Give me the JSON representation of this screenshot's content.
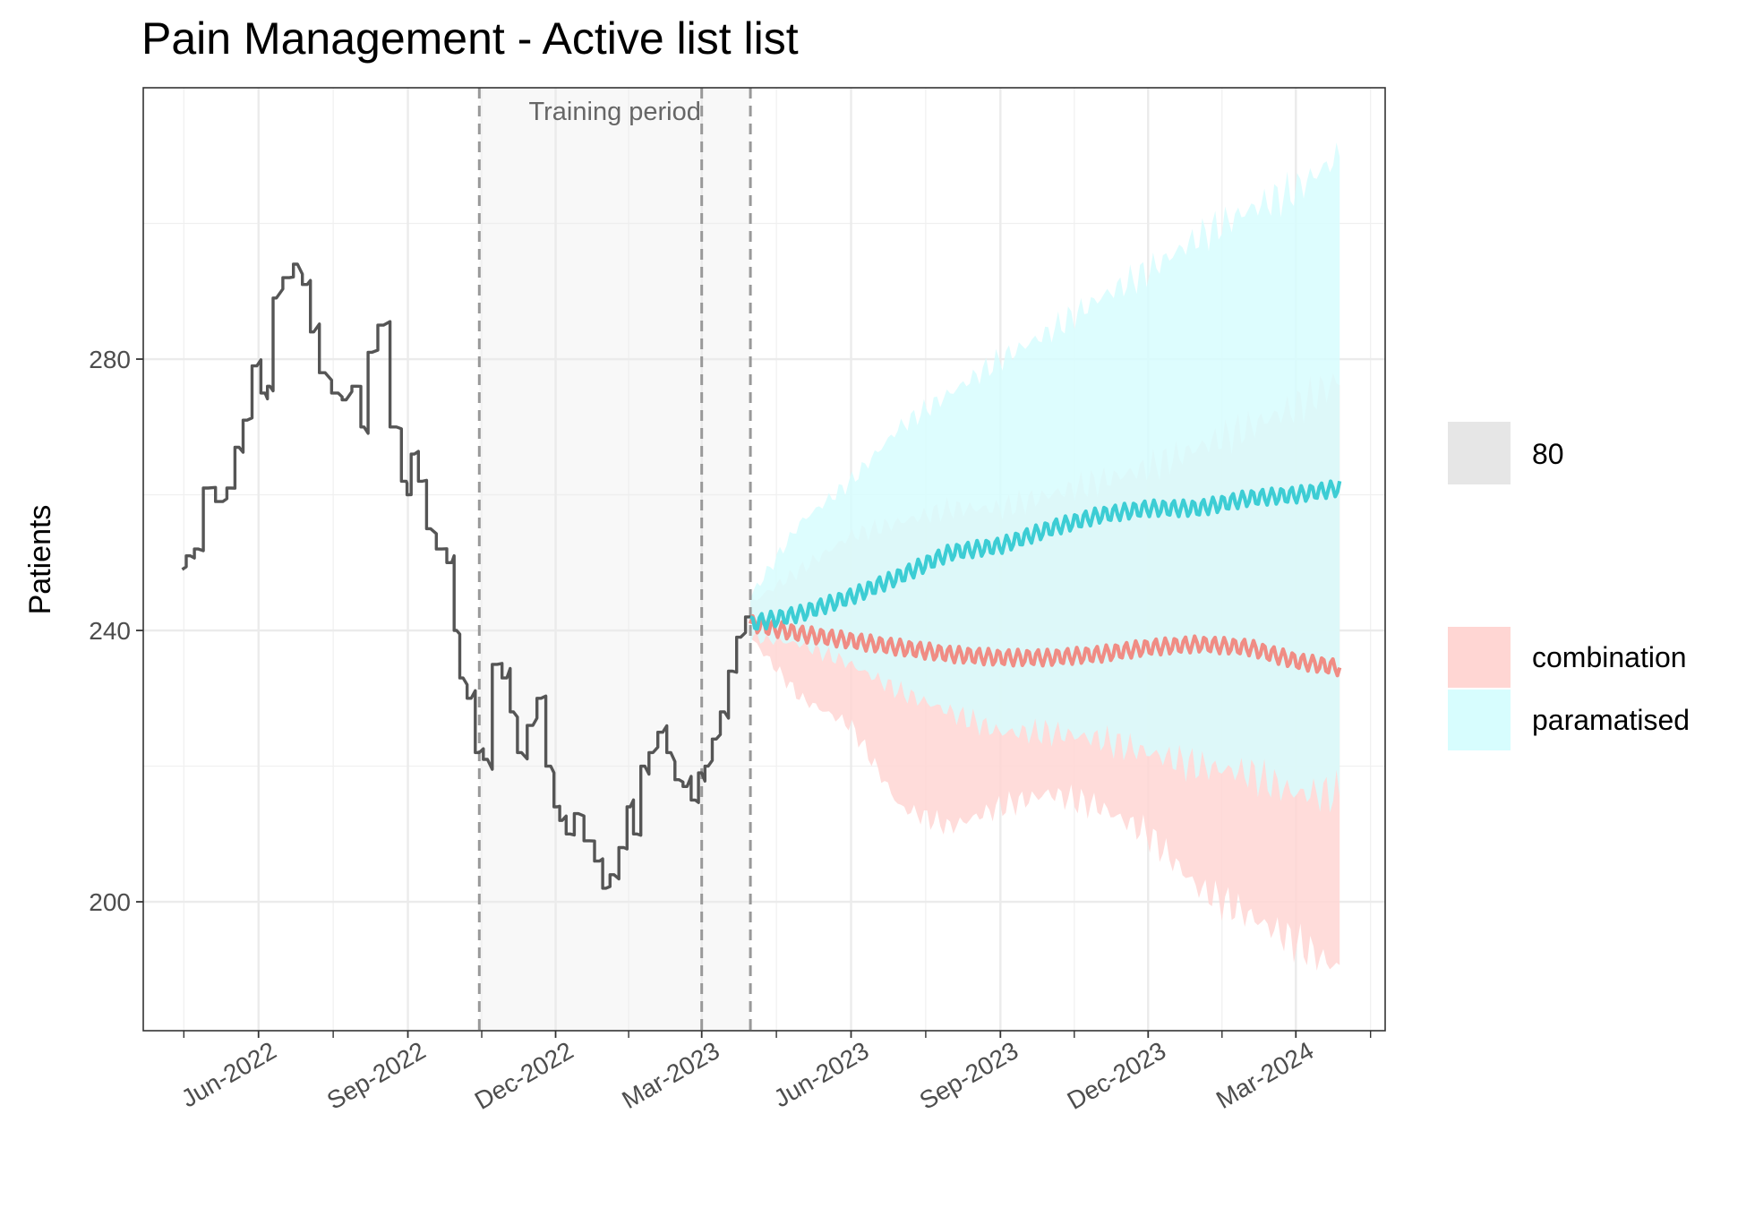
{
  "chart_data": {
    "type": "line",
    "title": "Pain Management - Active list list",
    "xlabel": "",
    "ylabel": "Patients",
    "xlim": [
      "2022-03-22",
      "2024-04-25"
    ],
    "ylim": [
      181,
      320
    ],
    "x_ticks": [
      {
        "date": "2022-06-01",
        "label": "Jun-2022"
      },
      {
        "date": "2022-09-01",
        "label": "Sep-2022"
      },
      {
        "date": "2022-12-01",
        "label": "Dec-2022"
      },
      {
        "date": "2023-03-01",
        "label": "Mar-2023"
      },
      {
        "date": "2023-06-01",
        "label": "Jun-2023"
      },
      {
        "date": "2023-09-01",
        "label": "Sep-2023"
      },
      {
        "date": "2023-12-01",
        "label": "Dec-2023"
      },
      {
        "date": "2024-03-01",
        "label": "Mar-2024"
      }
    ],
    "y_ticks": [
      200,
      240,
      280
    ],
    "grid": true,
    "annotations": [
      {
        "text": "Training period",
        "x_start": "2022-10-15",
        "x_end": "2023-03-31"
      }
    ],
    "vertical_lines": [
      "2022-10-15",
      "2023-03-01",
      "2023-03-31"
    ],
    "observed": {
      "color": "#555555",
      "points": [
        [
          "2022-04-15",
          249
        ],
        [
          "2022-04-20",
          251
        ],
        [
          "2022-04-25",
          252
        ],
        [
          "2022-05-01",
          261
        ],
        [
          "2022-05-10",
          259
        ],
        [
          "2022-05-15",
          261
        ],
        [
          "2022-05-20",
          267
        ],
        [
          "2022-05-25",
          271
        ],
        [
          "2022-05-31",
          279
        ],
        [
          "2022-06-05",
          275
        ],
        [
          "2022-06-08",
          276
        ],
        [
          "2022-06-12",
          289
        ],
        [
          "2022-06-20",
          292
        ],
        [
          "2022-06-25",
          294
        ],
        [
          "2022-07-01",
          291
        ],
        [
          "2022-07-05",
          284
        ],
        [
          "2022-07-12",
          278
        ],
        [
          "2022-07-20",
          275
        ],
        [
          "2022-07-25",
          274
        ],
        [
          "2022-08-01",
          276
        ],
        [
          "2022-08-05",
          270
        ],
        [
          "2022-08-10",
          281
        ],
        [
          "2022-08-17",
          285
        ],
        [
          "2022-08-25",
          270
        ],
        [
          "2022-08-31",
          262
        ],
        [
          "2022-09-01",
          260
        ],
        [
          "2022-09-05",
          266
        ],
        [
          "2022-09-10",
          262
        ],
        [
          "2022-09-15",
          255
        ],
        [
          "2022-09-22",
          252
        ],
        [
          "2022-09-28",
          250
        ],
        [
          "2022-10-01",
          240
        ],
        [
          "2022-10-05",
          233
        ],
        [
          "2022-10-10",
          230
        ],
        [
          "2022-10-15",
          222
        ],
        [
          "2022-10-20",
          221
        ],
        [
          "2022-10-26",
          235
        ],
        [
          "2022-11-01",
          233
        ],
        [
          "2022-11-05",
          228
        ],
        [
          "2022-11-10",
          222
        ],
        [
          "2022-11-17",
          226
        ],
        [
          "2022-11-22",
          230
        ],
        [
          "2022-11-28",
          220
        ],
        [
          "2022-12-02",
          214
        ],
        [
          "2022-12-05",
          212
        ],
        [
          "2022-12-10",
          210
        ],
        [
          "2022-12-15",
          213
        ],
        [
          "2022-12-22",
          209
        ],
        [
          "2022-12-28",
          206
        ],
        [
          "2023-01-01",
          202
        ],
        [
          "2023-01-06",
          204
        ],
        [
          "2023-01-12",
          208
        ],
        [
          "2023-01-16",
          214
        ],
        [
          "2023-01-20",
          210
        ],
        [
          "2023-01-25",
          220
        ],
        [
          "2023-01-30",
          222
        ],
        [
          "2023-02-05",
          225
        ],
        [
          "2023-02-10",
          222
        ],
        [
          "2023-02-15",
          218
        ],
        [
          "2023-02-20",
          217
        ],
        [
          "2023-02-25",
          215
        ],
        [
          "2023-03-01",
          219
        ],
        [
          "2023-03-05",
          220
        ],
        [
          "2023-03-10",
          224
        ],
        [
          "2023-03-15",
          228
        ],
        [
          "2023-03-20",
          234
        ],
        [
          "2023-03-25",
          239
        ],
        [
          "2023-03-31",
          242
        ]
      ]
    },
    "interval_level": "80",
    "series": [
      {
        "name": "combination",
        "color": "#f08c84",
        "band_color": "#ffd6d3",
        "x": [
          "2023-03-31",
          "2023-05-01",
          "2023-06-01",
          "2023-07-01",
          "2023-08-01",
          "2023-09-01",
          "2023-10-01",
          "2023-11-01",
          "2023-12-01",
          "2024-01-01",
          "2024-02-01",
          "2024-03-01",
          "2024-03-28"
        ],
        "values": [
          241,
          239.5,
          238.5,
          237.5,
          236.5,
          236,
          236,
          236.5,
          237.5,
          238,
          237.5,
          235.5,
          234.5
        ],
        "lower": [
          239,
          230,
          226,
          214,
          211,
          214,
          216,
          214,
          210,
          202,
          198,
          194,
          190
        ],
        "upper": [
          244,
          249,
          254,
          256,
          258,
          258,
          260,
          262,
          264,
          267,
          270,
          273,
          277
        ]
      },
      {
        "name": "paramatised",
        "color": "#3ccdd4",
        "band_color": "#d7fdfe",
        "x": [
          "2023-03-31",
          "2023-05-01",
          "2023-06-01",
          "2023-07-01",
          "2023-08-01",
          "2023-09-01",
          "2023-10-01",
          "2023-11-01",
          "2023-12-01",
          "2024-01-01",
          "2024-02-01",
          "2024-03-01",
          "2024-03-28"
        ],
        "values": [
          241,
          242.5,
          245,
          248,
          251.5,
          252.5,
          255,
          257,
          258,
          258,
          259.5,
          260,
          261
        ],
        "lower": [
          239,
          238,
          235,
          231,
          228,
          225,
          225,
          224,
          222,
          220,
          219,
          216,
          216
        ],
        "upper": [
          245,
          256,
          262,
          270,
          275,
          280,
          284,
          289,
          293,
          298,
          302,
          305,
          310
        ]
      }
    ]
  }
}
